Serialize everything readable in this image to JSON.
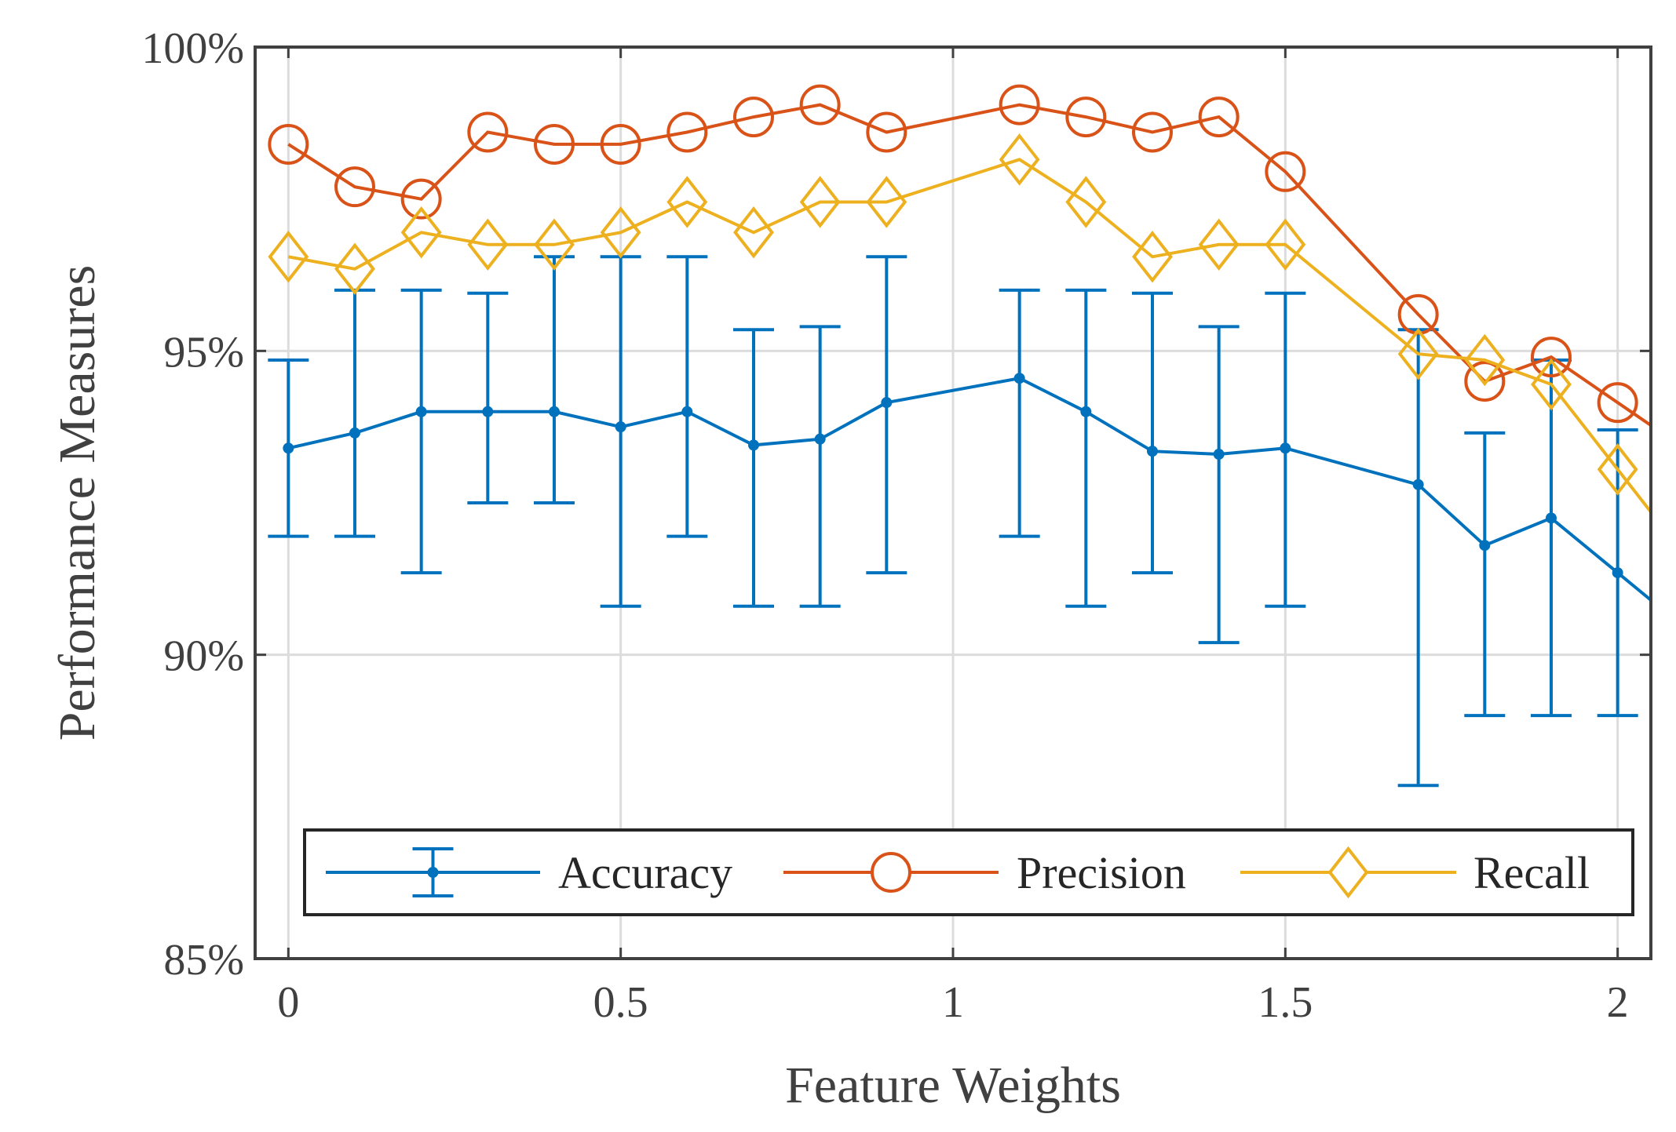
{
  "chart_data": {
    "type": "line",
    "xlabel": "Feature Weights",
    "ylabel": "Performance Measures",
    "xlim": [
      -0.05,
      2.05
    ],
    "ylim": [
      85,
      100
    ],
    "grid": true,
    "legend_position": "bottom",
    "x_ticks": [
      {
        "value": 0,
        "label": "0"
      },
      {
        "value": 0.5,
        "label": "0.5"
      },
      {
        "value": 1,
        "label": "1"
      },
      {
        "value": 1.5,
        "label": "1.5"
      },
      {
        "value": 2,
        "label": "2"
      }
    ],
    "y_ticks": [
      {
        "value": 85,
        "label": "85%"
      },
      {
        "value": 90,
        "label": "90%"
      },
      {
        "value": 95,
        "label": "95%"
      },
      {
        "value": 100,
        "label": "100%"
      }
    ],
    "x": [
      0,
      0.1,
      0.2,
      0.3,
      0.4,
      0.5,
      0.6,
      0.7,
      0.8,
      0.9,
      1.1,
      1.2,
      1.3,
      1.4,
      1.5,
      1.7,
      1.8,
      1.9,
      2.0
    ],
    "series": [
      {
        "name": "Accuracy",
        "color": "#0072BD",
        "marker": "dot",
        "values": [
          93.4,
          93.65,
          94.0,
          94.0,
          94.0,
          93.75,
          94.0,
          93.45,
          93.55,
          94.15,
          94.55,
          94.0,
          93.35,
          93.3,
          93.4,
          92.8,
          91.8,
          92.25,
          91.35
        ],
        "err_low": [
          91.95,
          91.95,
          91.35,
          92.5,
          92.5,
          90.8,
          91.95,
          90.8,
          90.8,
          91.35,
          91.95,
          90.8,
          91.35,
          90.2,
          90.8,
          87.85,
          89.0,
          89.0,
          89.0
        ],
        "err_high": [
          94.85,
          96.0,
          96.0,
          95.95,
          96.55,
          96.55,
          96.55,
          95.35,
          95.4,
          96.55,
          96.0,
          96.0,
          95.95,
          95.4,
          95.95,
          95.35,
          93.65,
          94.85,
          93.7
        ]
      },
      {
        "name": "Precision",
        "color": "#D95319",
        "marker": "circle",
        "values": [
          98.4,
          97.7,
          97.5,
          98.6,
          98.4,
          98.4,
          98.6,
          98.85,
          99.05,
          98.6,
          99.05,
          98.85,
          98.6,
          98.85,
          97.95,
          95.6,
          94.5,
          94.9,
          94.15
        ]
      },
      {
        "name": "Recall",
        "color": "#EDB120",
        "marker": "diamond",
        "values": [
          96.55,
          96.35,
          96.95,
          96.75,
          96.75,
          96.95,
          97.45,
          96.95,
          97.45,
          97.45,
          98.15,
          97.45,
          96.55,
          96.75,
          96.75,
          94.95,
          94.85,
          94.45,
          93.05
        ]
      }
    ]
  }
}
